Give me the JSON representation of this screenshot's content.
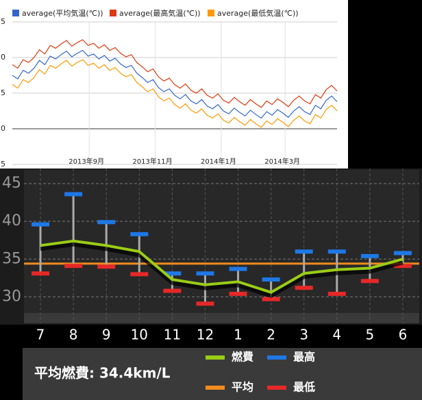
{
  "chart_data": [
    {
      "type": "line",
      "series": [
        {
          "name": "average(平均気温(℃))",
          "color": "#3366cc",
          "values": [
            7.5,
            7.0,
            8.2,
            7.8,
            8.5,
            9.6,
            9.0,
            10.2,
            9.8,
            10.4,
            10.9,
            10.1,
            10.6,
            11.0,
            10.2,
            10.5,
            9.8,
            10.3,
            9.5,
            9.9,
            9.1,
            8.6,
            8.9,
            7.8,
            7.2,
            6.5,
            6.9,
            5.8,
            5.2,
            5.6,
            4.7,
            4.2,
            4.8,
            3.9,
            3.5,
            4.1,
            3.2,
            2.8,
            3.4,
            2.5,
            2.1,
            2.9,
            2.3,
            1.8,
            2.6,
            2.0,
            1.5,
            2.4,
            1.9,
            2.7,
            2.2,
            1.6,
            2.5,
            3.1,
            2.4,
            2.0,
            3.3,
            2.8,
            4.0,
            4.6,
            3.8
          ]
        },
        {
          "name": "average(最高気温(℃))",
          "color": "#dc3912",
          "values": [
            9.0,
            8.5,
            9.7,
            9.3,
            10.0,
            11.1,
            10.5,
            11.7,
            11.3,
            11.9,
            12.4,
            11.6,
            12.1,
            12.5,
            11.7,
            12.0,
            11.3,
            11.8,
            11.0,
            11.4,
            10.6,
            10.1,
            10.4,
            9.3,
            8.7,
            8.0,
            8.4,
            7.3,
            6.7,
            7.1,
            6.2,
            5.7,
            6.3,
            5.4,
            5.0,
            5.6,
            4.7,
            4.3,
            4.9,
            4.0,
            3.6,
            4.4,
            3.8,
            3.3,
            4.1,
            3.5,
            3.0,
            3.9,
            3.4,
            4.2,
            3.7,
            3.1,
            4.0,
            4.6,
            3.9,
            3.5,
            4.8,
            4.3,
            5.5,
            6.1,
            5.3
          ]
        },
        {
          "name": "average(最低気温(℃))",
          "color": "#ff9900",
          "values": [
            6.2,
            5.7,
            6.9,
            6.5,
            7.2,
            8.3,
            7.7,
            8.9,
            8.5,
            9.1,
            9.6,
            8.8,
            9.3,
            9.7,
            8.9,
            9.2,
            8.5,
            9.0,
            8.2,
            8.6,
            7.8,
            7.3,
            7.6,
            6.5,
            5.9,
            5.2,
            5.6,
            4.5,
            3.9,
            4.3,
            3.4,
            2.9,
            3.5,
            2.6,
            2.2,
            2.8,
            1.9,
            1.5,
            2.1,
            1.2,
            0.8,
            1.6,
            1.0,
            0.5,
            1.3,
            0.7,
            0.2,
            1.1,
            0.6,
            1.4,
            0.9,
            0.3,
            1.2,
            1.8,
            1.1,
            0.7,
            2.0,
            1.5,
            2.7,
            3.3,
            2.5
          ]
        }
      ],
      "x": [
        0,
        5,
        10,
        15,
        20,
        25,
        30,
        35,
        40,
        45,
        50,
        55,
        60,
        65,
        70,
        75,
        80,
        85,
        90,
        95,
        100,
        105,
        110,
        115,
        120,
        125,
        130,
        135,
        140,
        145,
        150,
        155,
        160,
        165,
        170,
        175,
        180,
        185,
        190,
        195,
        200,
        205,
        210,
        215,
        220,
        225,
        230,
        235,
        240,
        245,
        250,
        255,
        260,
        265,
        270,
        275,
        280,
        285,
        290,
        295,
        300
      ],
      "xlim": [
        0,
        300
      ],
      "xticks": [
        {
          "value": 71,
          "label": "2013年9月"
        },
        {
          "value": 132,
          "label": "2013年11月"
        },
        {
          "value": 193,
          "label": "2014年1月"
        },
        {
          "value": 252,
          "label": "2014年3月"
        }
      ],
      "ylim": [
        -5,
        15
      ],
      "yticks": [
        {
          "value": 15,
          "label": "5"
        },
        {
          "value": 10,
          "label": "0"
        },
        5,
        0,
        {
          "value": -5,
          "label": "5"
        }
      ],
      "grid": true
    },
    {
      "type": "line",
      "categories": [
        "7",
        "8",
        "9",
        "10",
        "11",
        "12",
        "1",
        "2",
        "3",
        "4",
        "5",
        "6"
      ],
      "series": [
        {
          "name": "燃費",
          "color": "#9acd16",
          "values": [
            36.8,
            37.4,
            36.8,
            36.0,
            32.3,
            31.6,
            32.0,
            30.6,
            33.1,
            33.6,
            33.8,
            35.0
          ]
        },
        {
          "name": "最高",
          "color": "#1e78e6",
          "values": [
            39.6,
            43.6,
            39.9,
            38.3,
            33.1,
            33.1,
            33.7,
            32.3,
            36.0,
            36.0,
            35.4,
            35.8
          ]
        },
        {
          "name": "最低",
          "color": "#e62828",
          "values": [
            33.1,
            34.1,
            34.0,
            33.0,
            30.8,
            29.1,
            30.4,
            29.7,
            31.2,
            30.4,
            32.1,
            34.1
          ]
        }
      ],
      "average": {
        "name": "平均",
        "color": "#f08c1e",
        "value": 34.4
      },
      "summary": "平均燃費: 34.4km/L",
      "ylim": [
        26.5,
        47
      ],
      "yticks": [
        30,
        35,
        40,
        45
      ],
      "grid": true
    }
  ]
}
